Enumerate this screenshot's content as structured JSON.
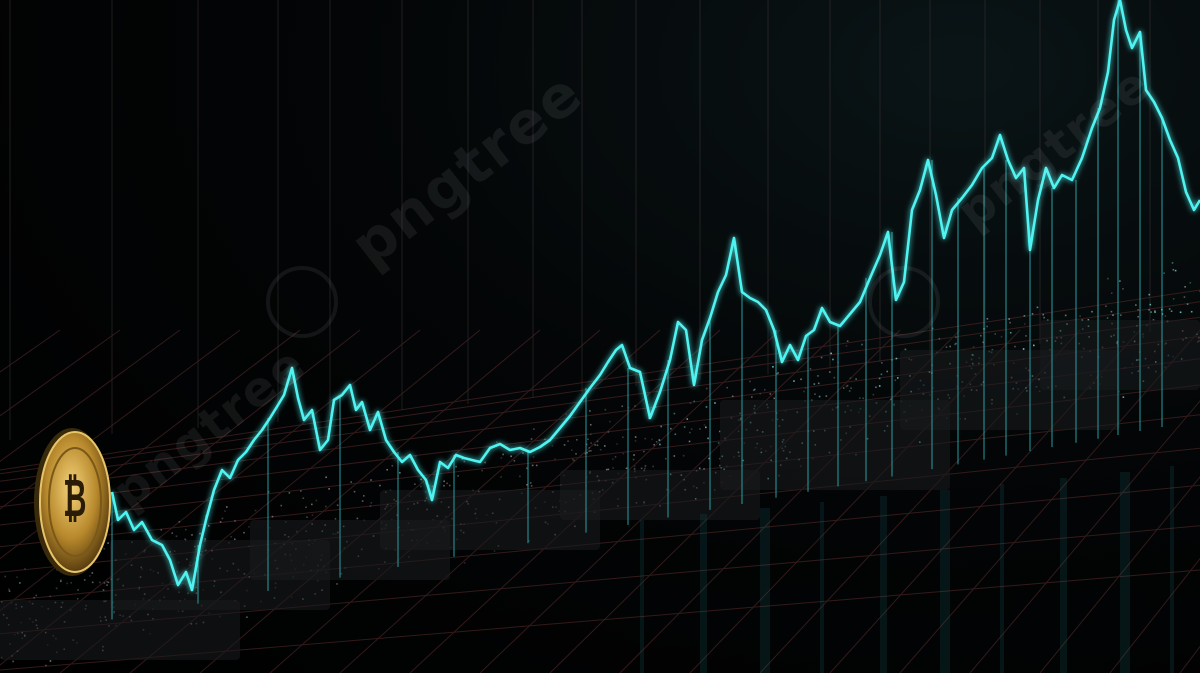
{
  "scene": {
    "description_tags": [
      "price-chart",
      "bitcoin-coin",
      "grid-floor",
      "data-particles"
    ],
    "colors": {
      "line": "#4ff3f0",
      "glow": "#1fb8c0",
      "grid": "#5a2a2a",
      "coin_gold": "#c9a03a",
      "background": "#000000"
    }
  },
  "watermark": {
    "text": "pngtree"
  }
}
